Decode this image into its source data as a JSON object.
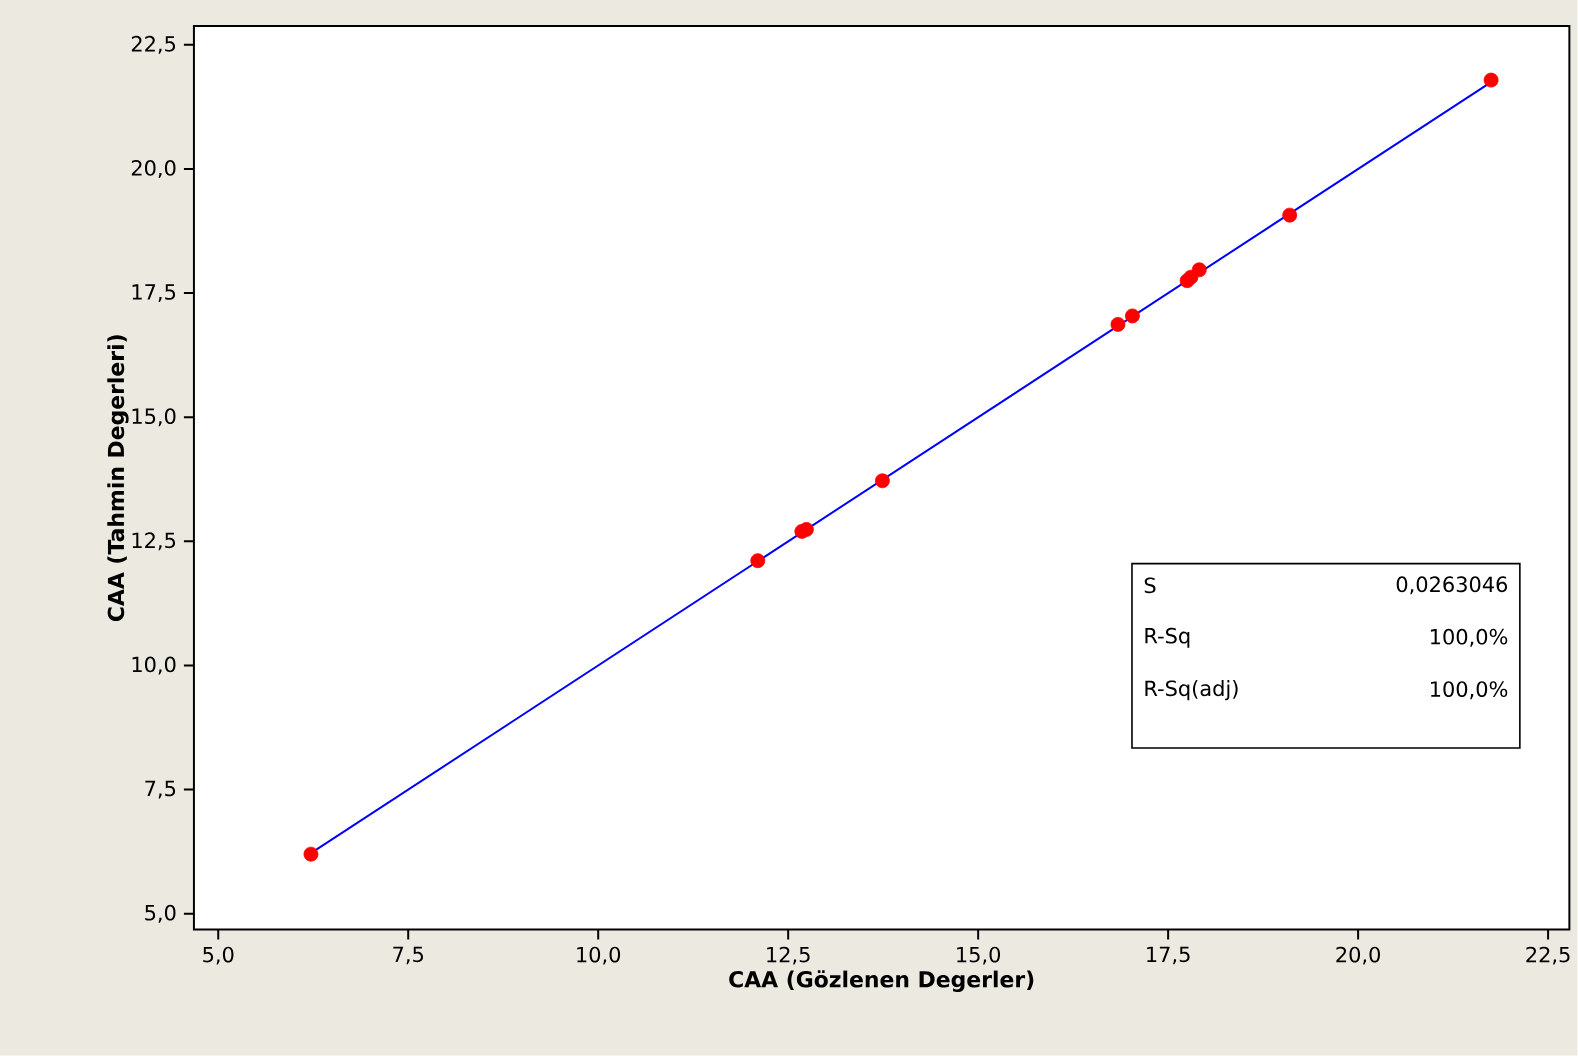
{
  "chart_data": {
    "type": "scatter",
    "xlabel": "CAA  (Gözlenen Degerler)",
    "ylabel": "CAA  (Tahmin Degerleri)",
    "xlim": [
      4.68,
      22.78
    ],
    "ylim": [
      4.68,
      22.88
    ],
    "xticks": [
      {
        "value": 5,
        "label": "5,0"
      },
      {
        "value": 7.5,
        "label": "7,5"
      },
      {
        "value": 10,
        "label": "10,0"
      },
      {
        "value": 12.5,
        "label": "12,5"
      },
      {
        "value": 15,
        "label": "15,0"
      },
      {
        "value": 17.5,
        "label": "17,5"
      },
      {
        "value": 20,
        "label": "20,0"
      },
      {
        "value": 22.5,
        "label": "22,5"
      }
    ],
    "yticks": [
      {
        "value": 5,
        "label": "5,0"
      },
      {
        "value": 7.5,
        "label": "7,5"
      },
      {
        "value": 10,
        "label": "10,0"
      },
      {
        "value": 12.5,
        "label": "12,5"
      },
      {
        "value": 15,
        "label": "15,0"
      },
      {
        "value": 17.5,
        "label": "17,5"
      },
      {
        "value": 20,
        "label": "20,0"
      },
      {
        "value": 22.5,
        "label": "22,5"
      }
    ],
    "grid": false,
    "series": [
      {
        "type": "line",
        "color": "#0000ff",
        "marker": "none",
        "x": [
          6.22,
          21.75
        ],
        "values": [
          6.22,
          21.75
        ]
      },
      {
        "color": "#ff0000",
        "marker": "circle",
        "x": [
          6.22,
          12.1,
          12.68,
          12.74,
          13.74,
          16.84,
          17.03,
          17.75,
          17.8,
          17.91,
          19.1,
          21.75
        ],
        "values": [
          6.2,
          12.11,
          12.7,
          12.74,
          13.72,
          16.87,
          17.04,
          17.75,
          17.82,
          17.97,
          19.07,
          21.79
        ]
      }
    ],
    "annotations": [
      "S",
      "0,0263046",
      "R-Sq",
      "100,0%",
      "R-Sq(adj)",
      "100,0%"
    ]
  }
}
